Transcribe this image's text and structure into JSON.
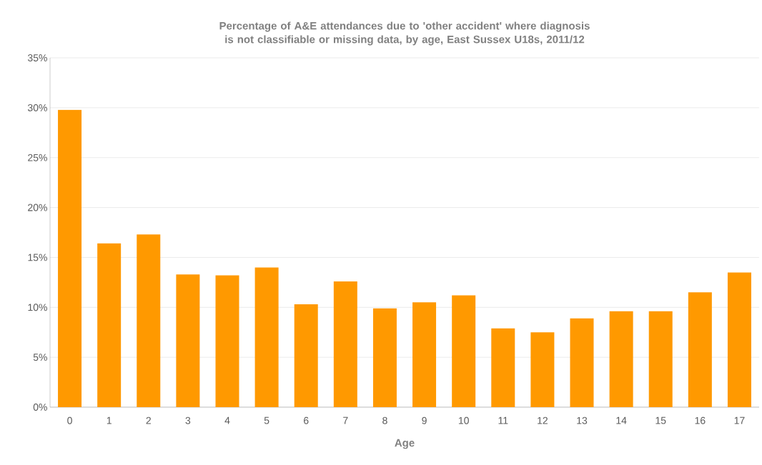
{
  "chart_data": {
    "type": "bar",
    "title": "Percentage of A&E attendances due to 'other accident' where diagnosis is not classifiable or missing data, by age, East Sussex U18s, 2011/12",
    "xlabel": "Age",
    "categories": [
      "0",
      "1",
      "2",
      "3",
      "4",
      "5",
      "6",
      "7",
      "8",
      "9",
      "10",
      "11",
      "12",
      "13",
      "14",
      "15",
      "16",
      "17"
    ],
    "values": [
      29.8,
      16.4,
      17.3,
      13.3,
      13.2,
      14.0,
      10.3,
      12.6,
      9.9,
      10.5,
      11.2,
      7.9,
      7.5,
      8.9,
      9.6,
      9.6,
      11.5,
      13.5
    ],
    "color": "#ff9900",
    "ylim": [
      0,
      35
    ],
    "yticks": [
      {
        "value": 0,
        "label": "0%"
      },
      {
        "value": 5,
        "label": "5%"
      },
      {
        "value": 10,
        "label": "10%"
      },
      {
        "value": 15,
        "label": "15%"
      },
      {
        "value": 20,
        "label": "20%"
      },
      {
        "value": 25,
        "label": "25%"
      },
      {
        "value": 30,
        "label": "30%"
      },
      {
        "value": 35,
        "label": "35%"
      }
    ],
    "grid": "y"
  }
}
